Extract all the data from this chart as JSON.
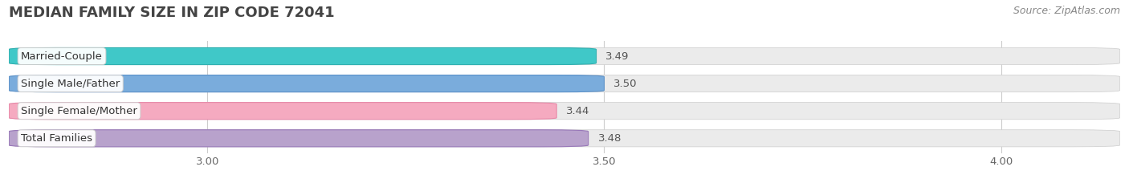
{
  "title": "MEDIAN FAMILY SIZE IN ZIP CODE 72041",
  "source": "Source: ZipAtlas.com",
  "categories": [
    "Married-Couple",
    "Single Male/Father",
    "Single Female/Mother",
    "Total Families"
  ],
  "values": [
    3.49,
    3.5,
    3.44,
    3.48
  ],
  "bar_colors": [
    "#40c8c8",
    "#7aacdc",
    "#f5aac0",
    "#b8a2cc"
  ],
  "bar_border_colors": [
    "#30b0b0",
    "#5a90c8",
    "#e888a8",
    "#9878b8"
  ],
  "background_color": "#ffffff",
  "bar_bg_color": "#ebebeb",
  "xlim_left": 2.75,
  "xlim_right": 4.15,
  "xticks": [
    3.0,
    3.5,
    4.0
  ],
  "xtick_labels": [
    "3.00",
    "3.50",
    "4.00"
  ],
  "title_fontsize": 13,
  "source_fontsize": 9,
  "label_fontsize": 9.5,
  "value_fontsize": 9.5,
  "tick_fontsize": 9.5,
  "figsize": [
    14.06,
    2.33
  ],
  "dpi": 100
}
